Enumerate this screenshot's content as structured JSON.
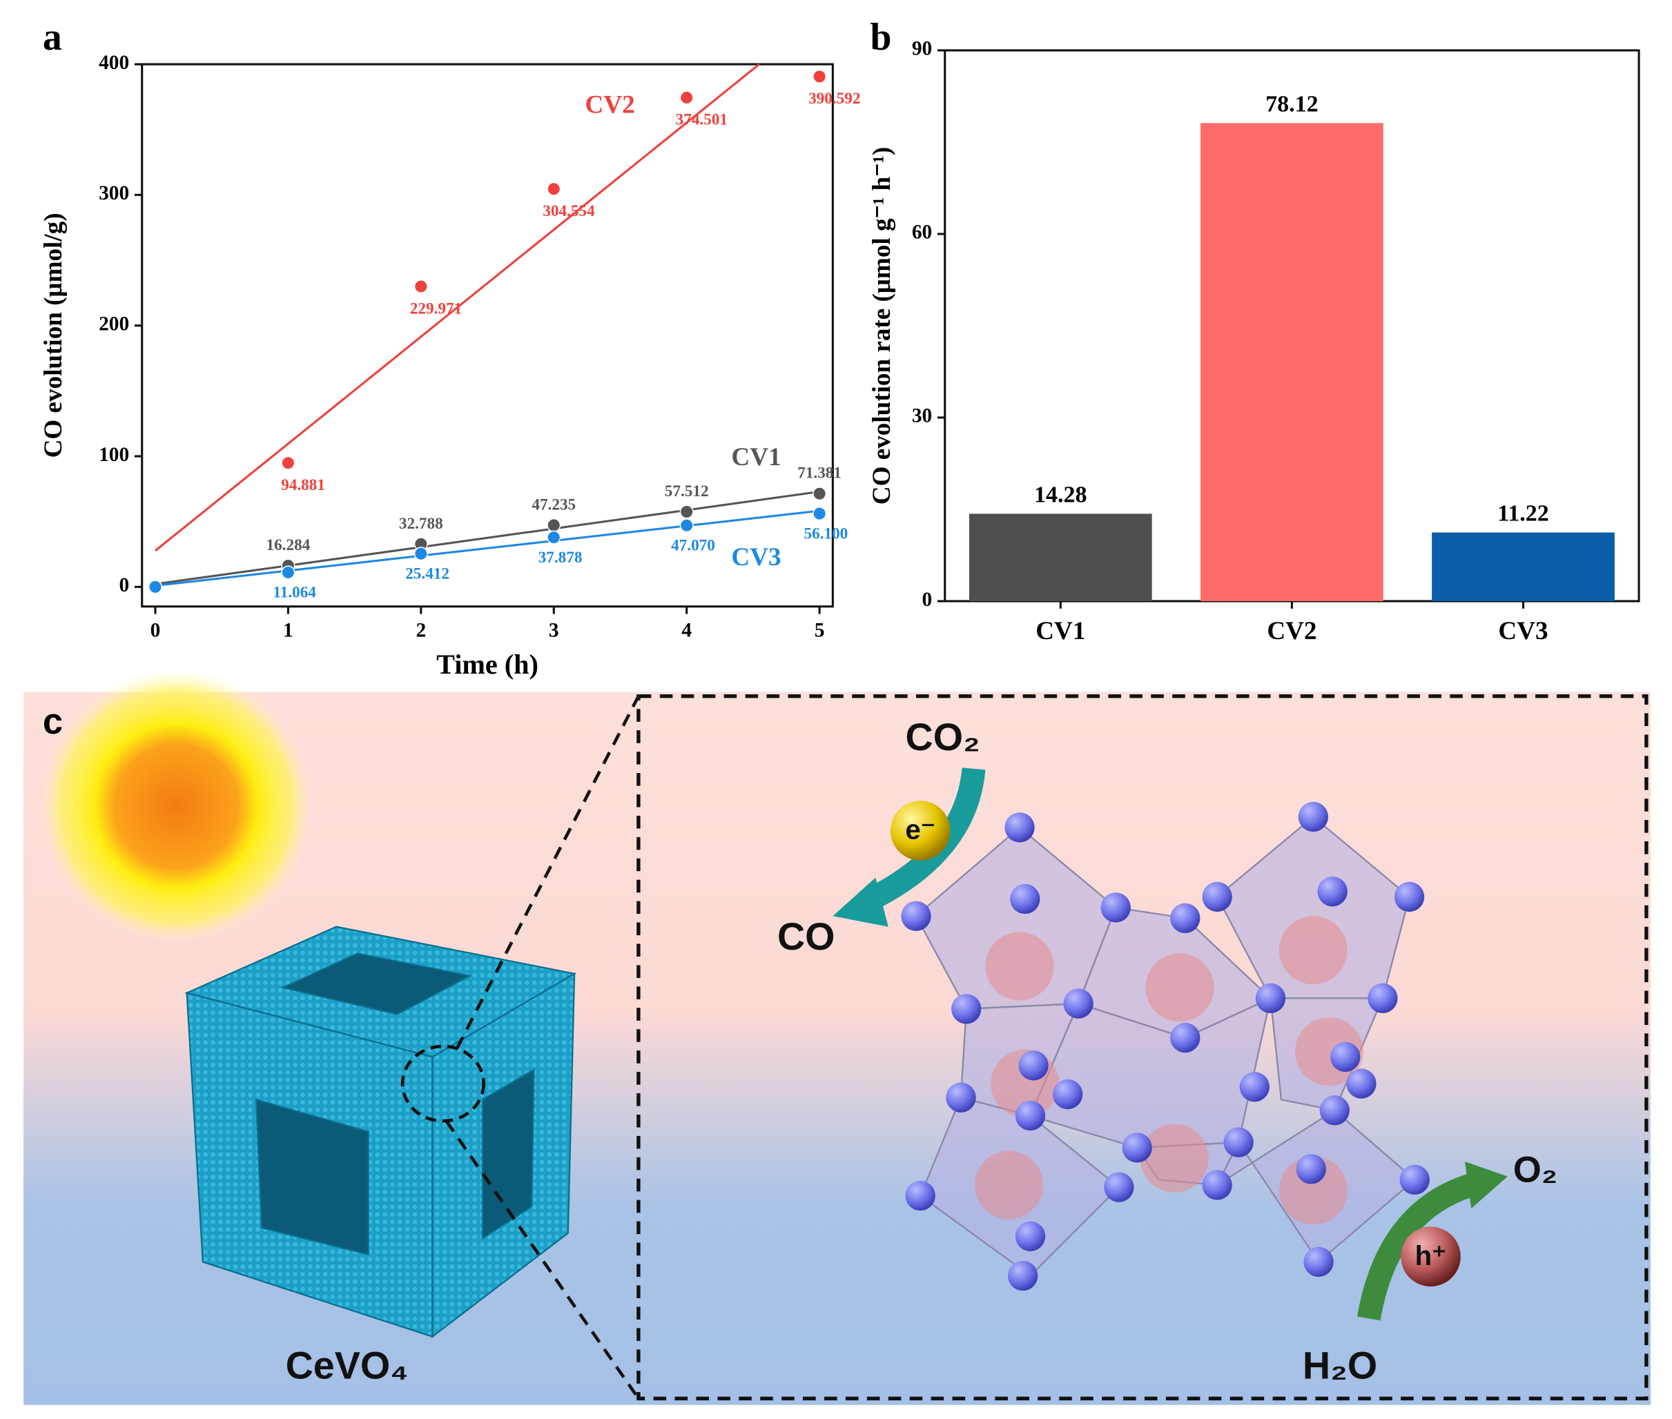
{
  "chart_data": [
    {
      "type": "scatter",
      "label": "a",
      "x_label": "Time (h)",
      "y_label": "CO evolution (μmol/g)",
      "x": [
        0,
        1,
        2,
        3,
        4,
        5
      ],
      "series": [
        {
          "name": "CV1",
          "color": "#555555",
          "values": [
            0,
            16.284,
            32.788,
            47.235,
            57.512,
            71.381
          ],
          "value_labels": [
            null,
            "16.284",
            "32.788",
            "47.235",
            "57.512",
            "71.381"
          ]
        },
        {
          "name": "CV2",
          "color": "#f0403c",
          "values": [
            0,
            94.881,
            229.971,
            304.554,
            374.501,
            390.592
          ],
          "value_labels": [
            null,
            "94.881",
            "229.971",
            "304.554",
            "374.501",
            "390.592"
          ]
        },
        {
          "name": "CV3",
          "color": "#1e88e5",
          "values": [
            0,
            11.064,
            25.412,
            37.878,
            47.07,
            56.1
          ],
          "value_labels": [
            null,
            "11.064",
            "25.412",
            "37.878",
            "47.070",
            "56.100"
          ]
        }
      ],
      "fit": "linear",
      "xlim": [
        -0.1,
        5.1
      ],
      "xticks": [
        0,
        1,
        2,
        3,
        4,
        5
      ],
      "ylim": [
        -15,
        400
      ],
      "yticks": [
        0,
        100,
        200,
        300,
        400
      ]
    },
    {
      "type": "bar",
      "label": "b",
      "y_label": "CO evolution rate (μmol g⁻¹ h⁻¹)",
      "categories": [
        "CV1",
        "CV2",
        "CV3"
      ],
      "values": [
        14.28,
        78.12,
        11.22
      ],
      "colors": [
        "#4f4f4f",
        "#ff6b6b",
        "#0b5ea8"
      ],
      "ylim": [
        0,
        90
      ],
      "yticks": [
        0,
        30,
        60,
        90
      ]
    }
  ],
  "diagram": {
    "label": "c",
    "material": "CeVO₄",
    "reactant_top": "CO₂",
    "product_top": "CO",
    "electron": "e⁻",
    "hole": "h⁺",
    "reactant_bottom": "H₂O",
    "product_bottom": "O₂"
  }
}
